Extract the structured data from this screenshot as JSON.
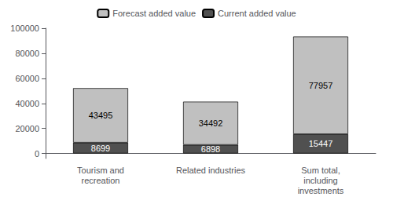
{
  "chart_data": {
    "type": "bar",
    "stacked": true,
    "categories": [
      "Tourism and\nrecreation",
      "Related industries",
      "Sum total,\nincluding\ninvestments"
    ],
    "series": [
      {
        "name": "Forecast added value",
        "color": "#c0c0c0",
        "values": [
          43495,
          34492,
          77957
        ]
      },
      {
        "name": "Current added value",
        "color": "#505050",
        "values": [
          8699,
          6898,
          15447
        ]
      }
    ],
    "ylim": [
      -4000,
      100000
    ],
    "yticks": [
      0,
      20000,
      40000,
      60000,
      80000,
      100000
    ],
    "grid": false,
    "legend": "top",
    "data_labels": true
  }
}
